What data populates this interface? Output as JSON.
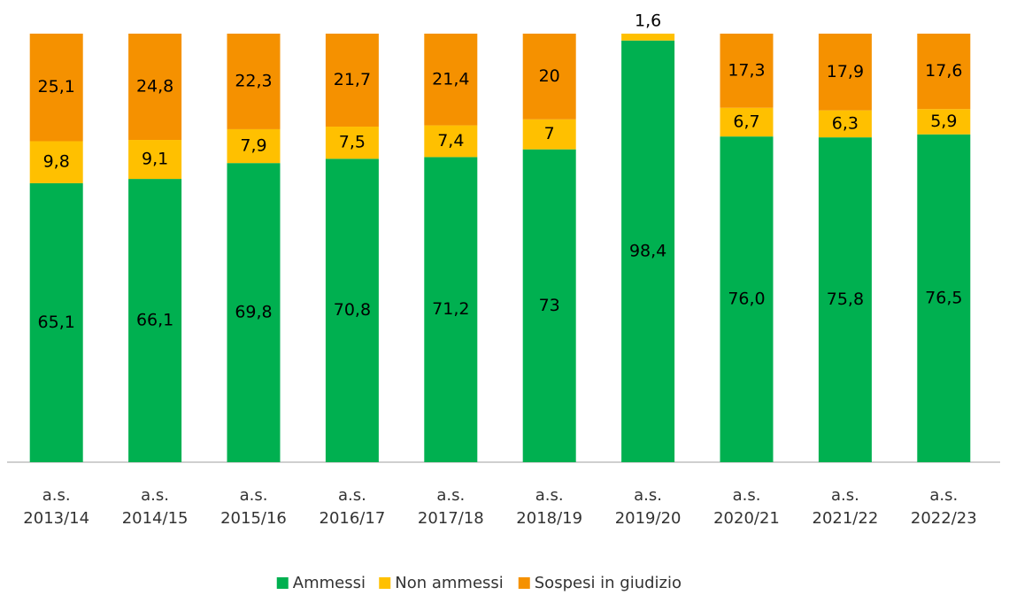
{
  "chart_data": {
    "type": "stacked_bar",
    "categories": [
      "a.s.\n2013/14",
      "a.s.\n2014/15",
      "a.s.\n2015/16",
      "a.s.\n2016/17",
      "a.s.\n2017/18",
      "a.s.\n2018/19",
      "a.s.\n2019/20",
      "a.s.\n2020/21",
      "a.s.\n2021/22",
      "a.s.\n2022/23"
    ],
    "ylim": [
      0,
      100
    ],
    "series": [
      {
        "name": "Ammessi",
        "color": "#00b050",
        "values": [
          65.1,
          66.1,
          69.8,
          70.8,
          71.2,
          73,
          98.4,
          76.0,
          75.8,
          76.5
        ],
        "value_labels": [
          "65,1",
          "66,1",
          "69,8",
          "70,8",
          "71,2",
          "73",
          "98,4",
          "76,0",
          "75,8",
          "76,5"
        ]
      },
      {
        "name": "Non ammessi",
        "color": "#ffc000",
        "values": [
          9.8,
          9.1,
          7.9,
          7.5,
          7.4,
          7,
          1.6,
          6.7,
          6.3,
          5.9
        ],
        "value_labels": [
          "9,8",
          "9,1",
          "7,9",
          "7,5",
          "7,4",
          "7",
          "1,6",
          "6,7",
          "6,3",
          "5,9"
        ]
      },
      {
        "name": "Sospesi in giudizio",
        "color": "#f59100",
        "values": [
          25.1,
          24.8,
          22.3,
          21.7,
          21.4,
          20,
          null,
          17.3,
          17.9,
          17.6
        ],
        "value_labels": [
          "25,1",
          "24,8",
          "22,3",
          "21,7",
          "21,4",
          "20",
          null,
          "17,3",
          "17,9",
          "17,6"
        ]
      }
    ],
    "legend": "bottom"
  }
}
